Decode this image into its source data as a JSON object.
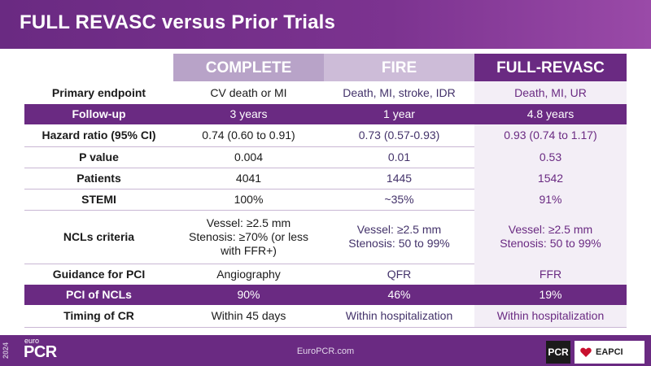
{
  "title": "FULL REVASC versus Prior Trials",
  "columns": [
    "COMPLETE",
    "FIRE",
    "FULL-REVASC"
  ],
  "rows": [
    {
      "label": "Primary endpoint",
      "values": [
        "CV death or MI",
        "Death, MI, stroke, IDR",
        "Death, MI, UR"
      ]
    },
    {
      "label": "Follow-up",
      "values": [
        "3 years",
        "1 year",
        "4.8 years"
      ]
    },
    {
      "label": "Hazard ratio (95% CI)",
      "values": [
        "0.74 (0.60 to 0.91)",
        "0.73 (0.57-0.93)",
        "0.93 (0.74 to 1.17)"
      ]
    },
    {
      "label": "P value",
      "values": [
        "0.004",
        "0.01",
        "0.53"
      ]
    },
    {
      "label": "Patients",
      "values": [
        "4041",
        "1445",
        "1542"
      ]
    },
    {
      "label": "STEMI",
      "values": [
        "100%",
        "~35%",
        "91%"
      ]
    },
    {
      "label": "NCLs criteria",
      "values": [
        "Vessel: ≥2.5 mm\nStenosis: ≥70% (or less\nwith FFR+)",
        "Vessel: ≥2.5 mm\nStenosis: 50 to 99%",
        "Vessel: ≥2.5 mm\nStenosis: 50 to 99%"
      ]
    },
    {
      "label": "Guidance for PCI",
      "values": [
        "Angiography",
        "QFR",
        "FFR"
      ]
    },
    {
      "label": "PCI of NCLs",
      "values": [
        "90%",
        "46%",
        "19%"
      ]
    },
    {
      "label": "Timing of CR",
      "values": [
        "Within 45 days",
        "Within hospitalization",
        "Within hospitalization"
      ]
    }
  ],
  "footer": {
    "year": "2024",
    "logo_euro": "euro",
    "logo_pcr": "PCR",
    "website": "EuroPCR.com",
    "pcr_badge": "PCR",
    "eapci_badge": "EAPCI",
    "heart_icon": "heart-icon"
  },
  "colors": {
    "brand_purple": "#6a2a82",
    "complete_header": "#b8a3c8",
    "fire_header": "#cdbcd8",
    "full_revasc_column": "#f3eef6"
  }
}
